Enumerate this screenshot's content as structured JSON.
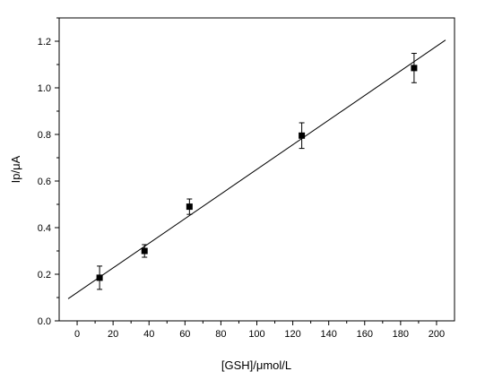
{
  "chart_data": {
    "type": "scatter",
    "xlabel": "[GSH]/μmol/L",
    "ylabel": "Ip/μA",
    "xlim": [
      -10,
      210
    ],
    "ylim": [
      0.0,
      1.3
    ],
    "x_ticks": [
      0,
      20,
      40,
      60,
      80,
      100,
      120,
      140,
      160,
      180,
      200
    ],
    "x_tick_labels": [
      "0",
      "20",
      "40",
      "60",
      "80",
      "100",
      "120",
      "140",
      "160",
      "180",
      "200"
    ],
    "y_ticks": [
      0.0,
      0.2,
      0.4,
      0.6,
      0.8,
      1.0,
      1.2
    ],
    "y_tick_labels": [
      "0.0",
      "0.2",
      "0.4",
      "0.6",
      "0.8",
      "1.0",
      "1.2"
    ],
    "grid": false,
    "legend": "none",
    "marker_color": "#000000",
    "series": [
      {
        "x": [
          12.5,
          37.5,
          62.5,
          125,
          187.5
        ],
        "y": [
          0.185,
          0.3,
          0.49,
          0.795,
          1.085
        ],
        "error": [
          0.05,
          0.027,
          0.033,
          0.055,
          0.063
        ]
      }
    ],
    "fit_line": {
      "x": [
        -5,
        205
      ],
      "y": [
        0.095,
        1.205
      ]
    }
  }
}
